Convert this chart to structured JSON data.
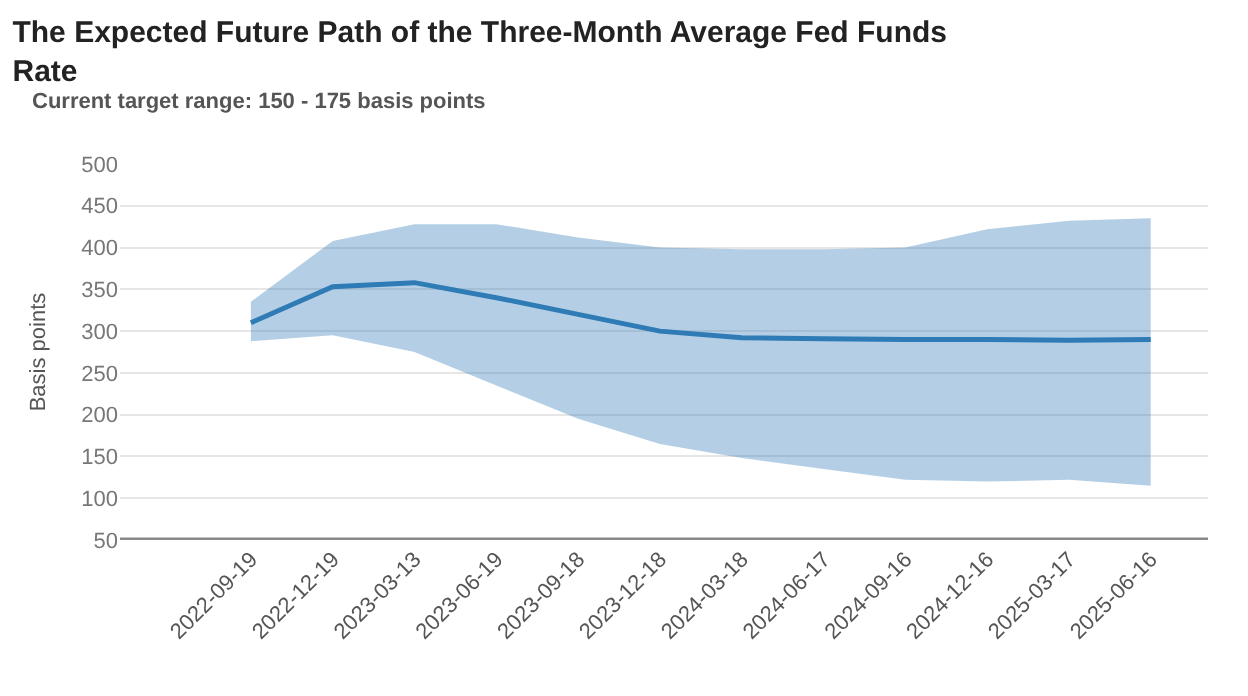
{
  "chart_data": {
    "type": "line",
    "title": "The Expected Future Path of the Three-Month Average Fed Funds Rate",
    "subtitle": "Current target range: 150 - 175 basis points",
    "ylabel": "Basis points",
    "categories": [
      "2022-09-19",
      "2022-12-19",
      "2023-03-13",
      "2023-06-19",
      "2023-09-18",
      "2023-12-18",
      "2024-03-18",
      "2024-06-17",
      "2024-09-16",
      "2024-12-16",
      "2025-03-17",
      "2025-06-16"
    ],
    "series": [
      {
        "color": "#2e7bb6",
        "values": [
          310,
          353,
          358,
          340,
          320,
          300,
          292,
          291,
          290,
          290,
          289,
          290
        ],
        "lower": [
          288,
          295,
          275,
          235,
          195,
          165,
          148,
          135,
          122,
          120,
          122,
          115
        ],
        "upper": [
          335,
          408,
          428,
          428,
          412,
          400,
          398,
          398,
          400,
          422,
          432,
          435
        ]
      }
    ],
    "ylim": [
      50,
      500
    ],
    "yticks": [
      50,
      100,
      150,
      200,
      250,
      300,
      350,
      400,
      450,
      500
    ],
    "grid": "y",
    "marker": "none",
    "line_style": "solid"
  }
}
